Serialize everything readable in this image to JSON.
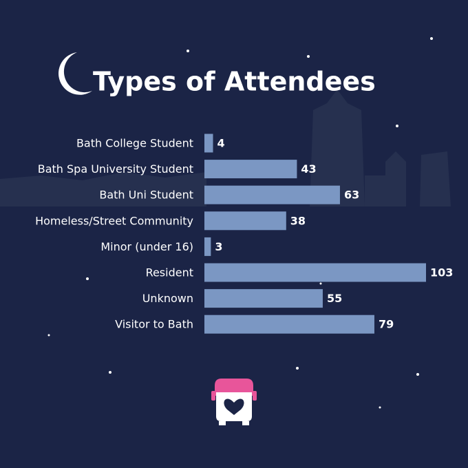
{
  "chart_data": {
    "type": "bar",
    "orientation": "horizontal",
    "title": "Types of Attendees",
    "categories": [
      "Bath College Student",
      "Bath Spa University Student",
      "Bath Uni Student",
      "Homeless/Street Community",
      "Minor (under 16)",
      "Resident",
      "Unknown",
      "Visitor to Bath"
    ],
    "values": [
      4,
      43,
      63,
      38,
      3,
      103,
      55,
      79
    ],
    "color": "#7b97c3"
  }
}
